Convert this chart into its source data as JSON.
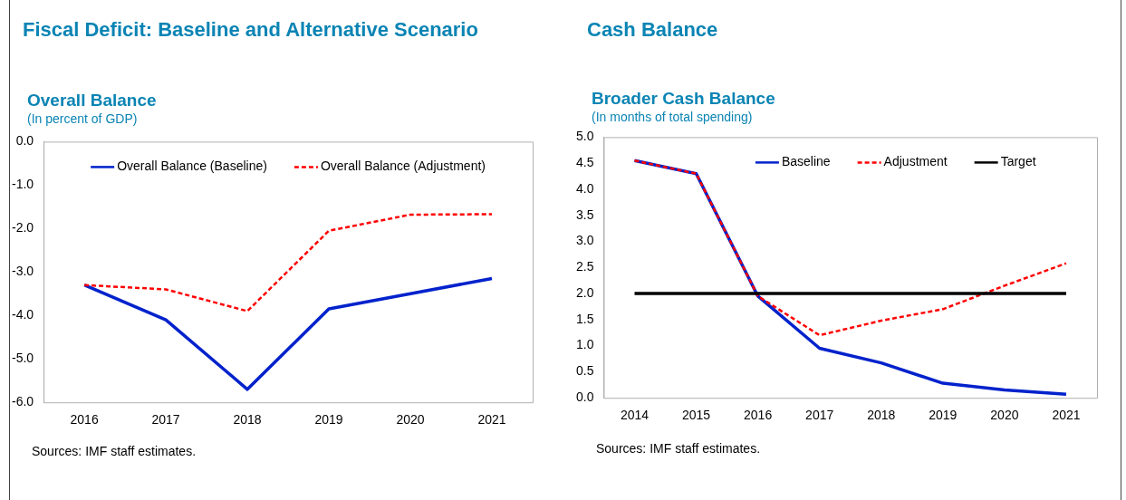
{
  "chart_data": [
    {
      "type": "line",
      "title": "Fiscal Deficit: Baseline and Alternative Scenario",
      "subtitle": "Overall Balance",
      "ylabel": "(In percent of GDP)",
      "categories": [
        "2016",
        "2017",
        "2018",
        "2019",
        "2020",
        "2021"
      ],
      "series": [
        {
          "name": "Overall Balance (Baseline)",
          "color": "#0022cc",
          "line_style": "solid",
          "values": [
            -3.3,
            -4.1,
            -5.7,
            -3.85,
            -3.5,
            -3.15
          ]
        },
        {
          "name": "Overall Balance (Adjustment)",
          "color": "#ff0000",
          "line_style": "dashed",
          "values": [
            -3.3,
            -3.4,
            -3.9,
            -2.05,
            -1.68,
            -1.67
          ]
        }
      ],
      "ylim": [
        -6,
        0
      ],
      "yticks": [
        {
          "value": 0,
          "label": "0.0"
        },
        {
          "value": -1,
          "label": "-1.0"
        },
        {
          "value": -2,
          "label": "-2.0"
        },
        {
          "value": -3,
          "label": "-3.0"
        },
        {
          "value": -4,
          "label": "-4.0"
        },
        {
          "value": -5,
          "label": "-5.0"
        },
        {
          "value": -6,
          "label": "-6.0"
        }
      ],
      "grid": false,
      "legend": "top",
      "marker": "none",
      "annotations": [
        "Sources: IMF staff estimates."
      ]
    },
    {
      "type": "line",
      "title": "Cash Balance",
      "subtitle": "Broader Cash Balance",
      "ylabel": "(In months of total spending)",
      "categories": [
        "2014",
        "2015",
        "2016",
        "2017",
        "2018",
        "2019",
        "2020",
        "2021"
      ],
      "series": [
        {
          "name": "Baseline",
          "color": "#0022cc",
          "line_style": "solid",
          "values": [
            4.55,
            4.3,
            1.95,
            0.95,
            0.67,
            0.28,
            0.15,
            0.07
          ]
        },
        {
          "name": "Adjustment",
          "color": "#ff0000",
          "line_style": "dashed",
          "values": [
            4.55,
            4.3,
            1.95,
            1.2,
            1.48,
            1.7,
            2.15,
            2.58
          ]
        },
        {
          "name": "Target",
          "color": "#000000",
          "line_style": "solid",
          "values": [
            2,
            2,
            2,
            2,
            2,
            2,
            2,
            2
          ]
        }
      ],
      "ylim": [
        0,
        5
      ],
      "yticks": [
        {
          "value": 0,
          "label": "0.0"
        },
        {
          "value": 0.5,
          "label": "0.5"
        },
        {
          "value": 1,
          "label": "1.0"
        },
        {
          "value": 1.5,
          "label": "1.5"
        },
        {
          "value": 2,
          "label": "2.0"
        },
        {
          "value": 2.5,
          "label": "2.5"
        },
        {
          "value": 3,
          "label": "3.0"
        },
        {
          "value": 3.5,
          "label": "3.5"
        },
        {
          "value": 4,
          "label": "4.0"
        },
        {
          "value": 4.5,
          "label": "4.5"
        },
        {
          "value": 5,
          "label": "5.0"
        }
      ],
      "grid": false,
      "legend": "top",
      "marker": "none",
      "annotations": [
        "Sources: IMF staff estimates."
      ]
    }
  ]
}
